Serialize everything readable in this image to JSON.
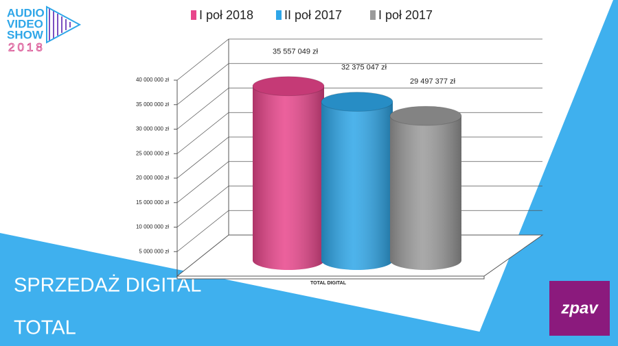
{
  "slide": {
    "title_lines": [
      "SPRZEDAŻ DIGITAL",
      "TOTAL"
    ],
    "logo_lines": [
      "AUDIO",
      "VIDEO",
      "SHOW",
      "2018"
    ],
    "brand": "zpav"
  },
  "chart_data": {
    "type": "bar",
    "categories": [
      "TOTAL DIGITAL"
    ],
    "series": [
      {
        "name": "I poł 2018",
        "color": "#e8458b",
        "values": [
          35557049
        ],
        "value_labels": [
          "35 557 049 zł"
        ]
      },
      {
        "name": "II poł 2017",
        "color": "#2ea6e8",
        "values": [
          32375047
        ],
        "value_labels": [
          "32 375 047 zł"
        ]
      },
      {
        "name": "I poł 2017",
        "color": "#9a9a9a",
        "values": [
          29497377
        ],
        "value_labels": [
          "29 497 377 zł"
        ]
      }
    ],
    "ylim": [
      0,
      40000000
    ],
    "yticks": [
      {
        "value": 5000000,
        "label": "5 000 000 zł"
      },
      {
        "value": 10000000,
        "label": "10 000 000 zł"
      },
      {
        "value": 15000000,
        "label": "15 000 000 zł"
      },
      {
        "value": 20000000,
        "label": "20 000 000 zł"
      },
      {
        "value": 25000000,
        "label": "25 000 000 zł"
      },
      {
        "value": 30000000,
        "label": "30 000 000 zł"
      },
      {
        "value": 35000000,
        "label": "35 000 000 zł"
      },
      {
        "value": 40000000,
        "label": "40 000 000 zł"
      }
    ],
    "grid": true,
    "legend": "top"
  }
}
